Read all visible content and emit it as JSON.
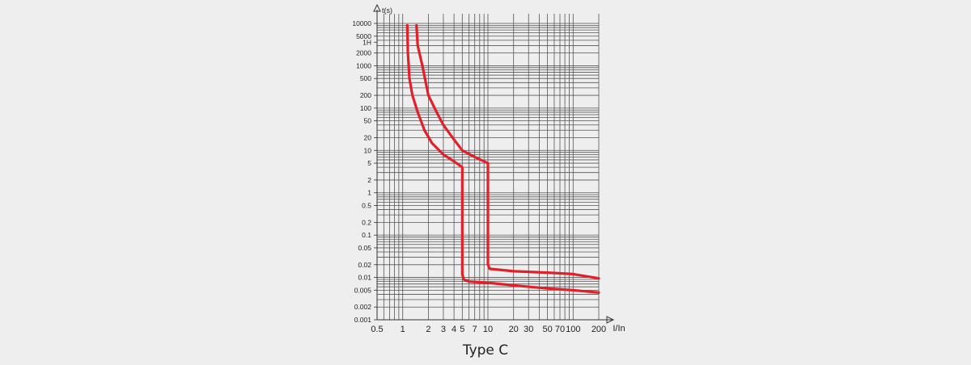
{
  "caption": "Type C",
  "chart_data": {
    "type": "line",
    "title": "",
    "xlabel": "I/In",
    "ylabel": "t(s)",
    "xscale": "log",
    "yscale": "log",
    "xlim": [
      0.5,
      200
    ],
    "ylim": [
      0.001,
      10000
    ],
    "grid": true,
    "x_ticks": [
      {
        "value": 0.5,
        "label": "0.5"
      },
      {
        "value": 1,
        "label": "1"
      },
      {
        "value": 2,
        "label": "2"
      },
      {
        "value": 3,
        "label": "3"
      },
      {
        "value": 4,
        "label": "4"
      },
      {
        "value": 5,
        "label": "5"
      },
      {
        "value": 7,
        "label": "7"
      },
      {
        "value": 10,
        "label": "10"
      },
      {
        "value": 20,
        "label": "20"
      },
      {
        "value": 30,
        "label": "30"
      },
      {
        "value": 50,
        "label": "50"
      },
      {
        "value": 70,
        "label": "70"
      },
      {
        "value": 100,
        "label": "100"
      },
      {
        "value": 200,
        "label": "200"
      }
    ],
    "y_ticks": [
      {
        "value": 10000,
        "label": "10000"
      },
      {
        "value": 5000,
        "label": "5000"
      },
      {
        "value": 3600,
        "label": "1H"
      },
      {
        "value": 2000,
        "label": "2000"
      },
      {
        "value": 1000,
        "label": "1000"
      },
      {
        "value": 500,
        "label": "500"
      },
      {
        "value": 200,
        "label": "200"
      },
      {
        "value": 100,
        "label": "100"
      },
      {
        "value": 50,
        "label": "50"
      },
      {
        "value": 20,
        "label": "20"
      },
      {
        "value": 10,
        "label": "10"
      },
      {
        "value": 5,
        "label": "5"
      },
      {
        "value": 2,
        "label": "2"
      },
      {
        "value": 1,
        "label": "1"
      },
      {
        "value": 0.5,
        "label": "0.5"
      },
      {
        "value": 0.2,
        "label": "0.2"
      },
      {
        "value": 0.1,
        "label": "0.1"
      },
      {
        "value": 0.05,
        "label": "0.05"
      },
      {
        "value": 0.02,
        "label": "0.02"
      },
      {
        "value": 0.01,
        "label": "0.01"
      },
      {
        "value": 0.005,
        "label": "0.005"
      },
      {
        "value": 0.002,
        "label": "0.002"
      },
      {
        "value": 0.001,
        "label": "0.001"
      }
    ],
    "series_color": "#e0202a",
    "series": [
      {
        "points": [
          [
            1.13,
            9000
          ],
          [
            1.15,
            2000
          ],
          [
            1.2,
            500
          ],
          [
            1.3,
            200
          ],
          [
            1.5,
            80
          ],
          [
            1.8,
            30
          ],
          [
            2.2,
            15
          ],
          [
            3,
            8
          ],
          [
            4,
            5.5
          ],
          [
            5,
            4
          ],
          [
            5,
            0.012
          ],
          [
            5.2,
            0.009
          ],
          [
            6,
            0.008
          ],
          [
            10,
            0.0075
          ],
          [
            20,
            0.0065
          ],
          [
            50,
            0.0055
          ],
          [
            100,
            0.005
          ],
          [
            200,
            0.0044
          ]
        ]
      },
      {
        "points": [
          [
            1.45,
            9000
          ],
          [
            1.5,
            3000
          ],
          [
            1.7,
            1000
          ],
          [
            2,
            200
          ],
          [
            2.5,
            80
          ],
          [
            3,
            40
          ],
          [
            4,
            18
          ],
          [
            5,
            10
          ],
          [
            7,
            7
          ],
          [
            10,
            5
          ],
          [
            10,
            0.02
          ],
          [
            10.5,
            0.016
          ],
          [
            20,
            0.014
          ],
          [
            50,
            0.013
          ],
          [
            100,
            0.012
          ],
          [
            200,
            0.0095
          ]
        ]
      }
    ]
  }
}
